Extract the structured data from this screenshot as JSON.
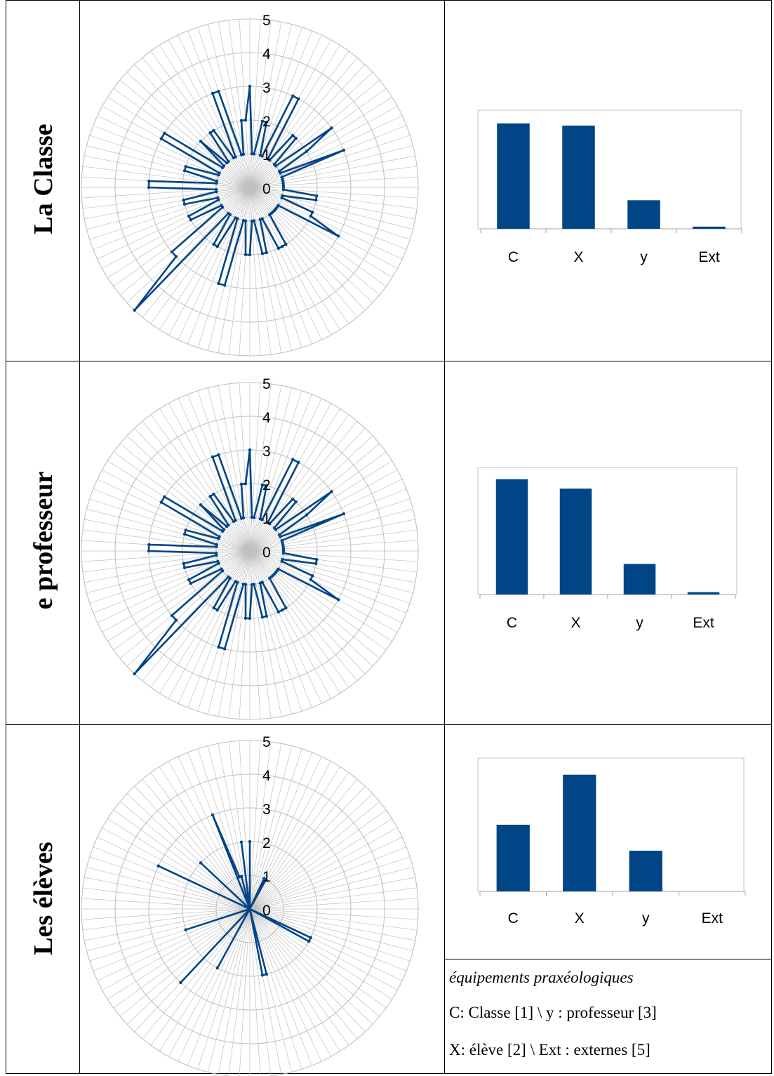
{
  "rows": [
    {
      "label": "La Classe"
    },
    {
      "label": "e professeur"
    },
    {
      "label": "Les élèves"
    }
  ],
  "legend": {
    "title": "équipements praxéologiques",
    "line1": "C: Classe [1] \\ y : professeur [3]",
    "line2": "X: élève [2]  \\ Ext : externes [5]"
  },
  "colors": {
    "series": "#004586",
    "grid": "#c0c0c0",
    "axis": "#a0a0a0"
  },
  "chart_data": [
    {
      "type": "radar",
      "row": "La Classe",
      "rlim": [
        0,
        5
      ],
      "tick_labels": [
        "0",
        "1",
        "2",
        "3",
        "4",
        "5"
      ],
      "values": [
        3,
        1,
        1,
        2,
        2,
        1,
        1,
        3,
        3,
        1,
        1,
        2,
        2,
        1,
        1,
        3,
        2,
        1,
        1,
        3,
        1,
        1,
        1,
        1,
        1,
        1,
        1,
        2,
        2,
        1,
        1,
        2,
        2,
        3,
        1,
        1,
        1,
        1,
        1,
        1,
        1,
        2,
        2,
        2,
        1,
        1,
        2,
        2,
        1,
        1,
        2,
        2,
        1,
        1,
        3,
        3,
        1,
        1,
        2,
        2,
        1,
        1,
        5,
        3,
        3,
        1,
        1,
        2,
        2,
        1,
        1,
        2,
        2,
        1,
        1,
        3,
        3,
        1,
        1,
        2,
        2,
        1,
        1,
        3,
        3,
        1,
        1,
        2,
        1,
        1,
        2,
        2,
        1,
        1,
        3,
        3,
        1,
        1,
        2,
        2
      ]
    },
    {
      "type": "bar",
      "row": "La Classe",
      "categories": [
        "C",
        "X",
        "y",
        "Ext"
      ],
      "values": [
        24,
        23.5,
        6.5,
        0.5
      ],
      "ylim": [
        0,
        27
      ]
    },
    {
      "type": "radar",
      "row": "e professeur",
      "rlim": [
        0,
        5
      ],
      "tick_labels": [
        "0",
        "1",
        "2",
        "3",
        "4",
        "5"
      ],
      "values": [
        3,
        1,
        1,
        2,
        2,
        1,
        1,
        3,
        3,
        1,
        1,
        2,
        2,
        1,
        1,
        3,
        2,
        1,
        1,
        3,
        1,
        1,
        1,
        1,
        1,
        1,
        1,
        2,
        2,
        1,
        1,
        2,
        2,
        3,
        1,
        1,
        1,
        1,
        1,
        1,
        1,
        2,
        2,
        2,
        1,
        1,
        2,
        2,
        1,
        1,
        2,
        2,
        1,
        1,
        3,
        3,
        1,
        1,
        2,
        2,
        1,
        1,
        5,
        3,
        3,
        1,
        1,
        2,
        2,
        1,
        1,
        2,
        2,
        1,
        1,
        3,
        3,
        1,
        1,
        2,
        2,
        1,
        1,
        3,
        3,
        1,
        1,
        2,
        1,
        1,
        2,
        2,
        1,
        1,
        3,
        3,
        1,
        1,
        2,
        2
      ]
    },
    {
      "type": "bar",
      "row": "e professeur",
      "categories": [
        "C",
        "X",
        "y",
        "Ext"
      ],
      "values": [
        24.5,
        22.5,
        6.5,
        0.5
      ],
      "ylim": [
        0,
        27
      ]
    },
    {
      "type": "radar",
      "row": "Les élèves",
      "rlim": [
        0,
        5
      ],
      "tick_labels": [
        "0",
        "1",
        "2",
        "3",
        "4",
        "5"
      ],
      "values": [
        2,
        0,
        0,
        0,
        0,
        0,
        0,
        1,
        1,
        0,
        0,
        0,
        0,
        0,
        0,
        0,
        0,
        0,
        0,
        0,
        0,
        0,
        0,
        0,
        0,
        0,
        0,
        0,
        0,
        0,
        0,
        0,
        2,
        2,
        0,
        0,
        0,
        0,
        0,
        0,
        0,
        0,
        0,
        0,
        0,
        0,
        2,
        2,
        0,
        0,
        0,
        0,
        0,
        0,
        0,
        0,
        0,
        0,
        2,
        0,
        0,
        0,
        3,
        0,
        0,
        0,
        0,
        0,
        0,
        0,
        2,
        0,
        0,
        0,
        0,
        0,
        0,
        0,
        0,
        0,
        0,
        0,
        3,
        0,
        0,
        0,
        0,
        2,
        0,
        0,
        0,
        0,
        0,
        0,
        3,
        1,
        1,
        0,
        2,
        0
      ]
    },
    {
      "type": "bar",
      "row": "Les élèves",
      "categories": [
        "C",
        "X",
        "y",
        "Ext"
      ],
      "values": [
        10,
        17.5,
        6.1,
        0
      ],
      "ylim": [
        0,
        20
      ]
    }
  ]
}
